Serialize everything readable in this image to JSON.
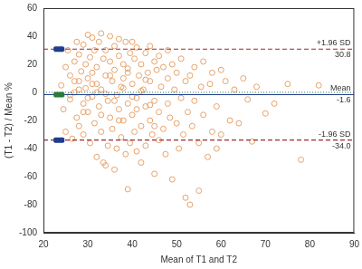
{
  "chart_data": {
    "type": "scatter",
    "x_label": "Mean of T1 and T2",
    "y_label": "(T1 - T2) / Mean %",
    "xlim": [
      20,
      90
    ],
    "ylim": [
      -100,
      60
    ],
    "xticks": [
      20,
      30,
      40,
      50,
      60,
      70,
      80,
      90
    ],
    "yticks": [
      -100,
      -80,
      -60,
      -40,
      -20,
      0,
      20,
      40,
      60
    ],
    "grid": false,
    "marker": "circle-open",
    "color": "#e6a26a",
    "x": [
      24,
      24.5,
      25,
      25,
      25.5,
      26,
      26,
      26.5,
      27,
      27,
      27.5,
      27.5,
      28,
      28,
      28,
      28.5,
      29,
      29,
      29,
      29.5,
      29.5,
      30,
      30,
      30,
      30.5,
      30.5,
      31,
      31,
      31,
      31.5,
      31.5,
      32,
      32,
      32,
      32.5,
      32.5,
      33,
      33,
      33,
      33.5,
      33.5,
      34,
      34,
      34,
      34.5,
      34.5,
      35,
      35,
      35,
      35.5,
      35.5,
      36,
      36,
      36,
      36.5,
      36.5,
      37,
      37,
      37,
      37.5,
      37.5,
      38,
      38,
      38,
      38.5,
      38.5,
      39,
      39,
      39,
      39.5,
      39.5,
      40,
      40,
      40,
      40.5,
      40.5,
      41,
      41,
      41,
      41.5,
      42,
      42,
      42,
      42.5,
      43,
      43,
      43,
      43.5,
      44,
      44,
      44,
      44.5,
      45,
      45,
      45,
      45.5,
      46,
      46,
      46,
      46.5,
      47,
      47,
      47.5,
      48,
      48,
      48,
      48.5,
      49,
      49,
      49.5,
      50,
      50,
      50.5,
      51,
      51,
      51.5,
      52,
      52,
      52.5,
      53,
      53,
      53.5,
      54,
      54,
      55,
      55,
      55.5,
      56,
      56,
      57,
      57.5,
      58,
      58,
      59,
      59,
      60,
      60,
      61,
      62,
      63,
      64,
      65,
      66,
      67,
      68,
      70,
      72,
      75,
      78,
      82,
      26,
      28,
      30,
      32,
      34,
      36,
      38,
      40,
      42,
      44,
      27,
      29,
      31,
      33,
      35,
      37,
      39,
      41,
      43,
      45
    ],
    "values": [
      5,
      -12,
      18,
      -28,
      30,
      -5,
      12,
      -33,
      22,
      0,
      36,
      -18,
      8,
      -24,
      27,
      15,
      -8,
      34,
      -30,
      3,
      20,
      41,
      -14,
      10,
      -36,
      25,
      -3,
      39,
      14,
      -22,
      30,
      -46,
      6,
      18,
      -10,
      36,
      42,
      -28,
      2,
      24,
      -50,
      -52,
      12,
      30,
      -6,
      -38,
      40,
      -18,
      22,
      8,
      -26,
      -55,
      16,
      33,
      -2,
      -40,
      38,
      -12,
      26,
      4,
      -32,
      20,
      -20,
      10,
      36,
      -44,
      -69,
      14,
      -8,
      28,
      -36,
      36,
      -16,
      6,
      24,
      -28,
      -4,
      32,
      -42,
      12,
      -24,
      20,
      -50,
      2,
      28,
      -10,
      -38,
      14,
      33,
      -20,
      8,
      -30,
      -58,
      22,
      -6,
      16,
      -34,
      26,
      -14,
      4,
      18,
      -26,
      -44,
      30,
      -8,
      10,
      -18,
      -62,
      20,
      2,
      -22,
      14,
      -40,
      24,
      -4,
      -30,
      -75,
      8,
      -14,
      -80,
      12,
      -24,
      -6,
      18,
      -70,
      -36,
      4,
      -16,
      22,
      -46,
      6,
      -28,
      14,
      -10,
      -40,
      -30,
      16,
      8,
      -20,
      2,
      -22,
      10,
      -5,
      -35,
      4,
      -15,
      -8,
      6,
      -48,
      5,
      -2,
      2,
      -4,
      0,
      -1,
      -6,
      3,
      -3,
      1,
      -9,
      8,
      -14,
      6,
      -16,
      12,
      -20,
      17,
      -12,
      9,
      -24
    ],
    "ci_x": 23.5,
    "lines": [
      {
        "name": "+1.96 SD",
        "value": 30.8,
        "color": "#a0282d",
        "line_style": "dashed",
        "ci": [
          29.4,
          32.2
        ],
        "ci_color": "#1f3d8c"
      },
      {
        "name": "Mean",
        "value": -1.6,
        "color": "#1f3d8c",
        "line_style": "solid",
        "ci": [
          -3.1,
          -0.1
        ],
        "ci_color": "#2a7a3a"
      },
      {
        "name": "-1.96 SD",
        "value": -34.0,
        "value_label": "-34.0",
        "color": "#a0282d",
        "line_style": "dashed",
        "ci": [
          -35.5,
          -32.5
        ],
        "ci_color": "#1f3d8c"
      },
      {
        "value": 0,
        "color": "#2a7a3a",
        "line_style": "dotted"
      }
    ]
  }
}
